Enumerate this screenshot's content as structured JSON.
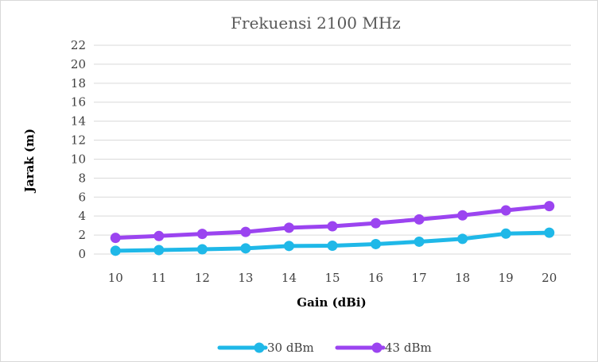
{
  "chart_data": {
    "type": "line",
    "title": "Frekuensi 2100 MHz",
    "xlabel": "Gain (dBi)",
    "ylabel": "Jarak (m)",
    "categories": [
      "10",
      "11",
      "12",
      "13",
      "14",
      "15",
      "16",
      "17",
      "18",
      "19",
      "20"
    ],
    "y_ticks": [
      "0",
      "2",
      "4",
      "6",
      "8",
      "10",
      "12",
      "14",
      "16",
      "18",
      "20",
      "22"
    ],
    "ylim": [
      0,
      22
    ],
    "grid": true,
    "legend_position": "bottom",
    "series": [
      {
        "name": "30 dBm",
        "color": "#1fb8e8",
        "values": [
          0.35,
          0.42,
          0.5,
          0.6,
          0.85,
          0.88,
          1.05,
          1.3,
          1.6,
          2.15,
          2.25
        ]
      },
      {
        "name": "43 dBm",
        "color": "#9b44f0",
        "values": [
          1.7,
          1.9,
          2.12,
          2.33,
          2.77,
          2.93,
          3.25,
          3.65,
          4.08,
          4.6,
          5.05
        ]
      }
    ]
  }
}
